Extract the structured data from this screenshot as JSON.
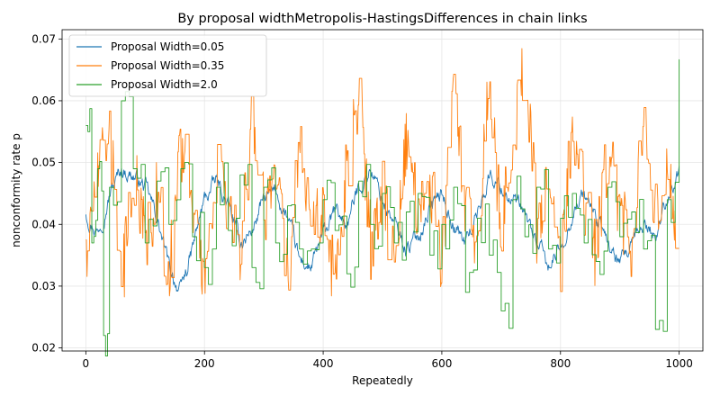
{
  "chart_data": {
    "type": "line",
    "title": "By proposal widthMetropolis-HastingsDifferences in chain links",
    "xlabel": "Repeatedly",
    "ylabel": "nonconformity rate p",
    "xlim": [
      -40,
      1040
    ],
    "ylim": [
      0.0195,
      0.0715
    ],
    "xticks": [
      0,
      200,
      400,
      600,
      800,
      1000
    ],
    "yticks": [
      0.02,
      0.03,
      0.04,
      0.05,
      0.06,
      0.07
    ],
    "grid": true,
    "legend": "top-left",
    "n_iterations": 1000,
    "series": [
      {
        "name": "Proposal Width=0.05",
        "color": "#1f77b4",
        "x": [
          0,
          20,
          40,
          60,
          80,
          100,
          120,
          140,
          160,
          180,
          200,
          220,
          240,
          260,
          280,
          300,
          320,
          340,
          360,
          380,
          400,
          420,
          440,
          460,
          480,
          500,
          520,
          540,
          560,
          580,
          600,
          620,
          640,
          660,
          680,
          700,
          720,
          740,
          760,
          780,
          800,
          820,
          840,
          860,
          880,
          900,
          920,
          940,
          960,
          980,
          1000
        ],
        "y": [
          0.042,
          0.039,
          0.045,
          0.049,
          0.048,
          0.046,
          0.041,
          0.033,
          0.029,
          0.036,
          0.044,
          0.047,
          0.043,
          0.037,
          0.039,
          0.044,
          0.045,
          0.041,
          0.034,
          0.033,
          0.038,
          0.042,
          0.04,
          0.046,
          0.049,
          0.044,
          0.04,
          0.036,
          0.038,
          0.043,
          0.045,
          0.04,
          0.037,
          0.042,
          0.048,
          0.046,
          0.044,
          0.041,
          0.037,
          0.033,
          0.036,
          0.042,
          0.045,
          0.041,
          0.037,
          0.033,
          0.036,
          0.04,
          0.038,
          0.045,
          0.048
        ]
      },
      {
        "name": "Proposal Width=0.35",
        "color": "#ff7f0e",
        "x": [
          0,
          20,
          40,
          60,
          80,
          100,
          120,
          140,
          160,
          180,
          200,
          220,
          240,
          260,
          280,
          300,
          320,
          340,
          360,
          380,
          400,
          420,
          440,
          460,
          480,
          500,
          520,
          540,
          560,
          580,
          600,
          620,
          640,
          660,
          680,
          700,
          720,
          740,
          760,
          780,
          800,
          820,
          840,
          860,
          880,
          900,
          920,
          940,
          960,
          980,
          1000
        ],
        "y": [
          0.032,
          0.047,
          0.056,
          0.029,
          0.05,
          0.038,
          0.045,
          0.031,
          0.053,
          0.044,
          0.03,
          0.048,
          0.041,
          0.035,
          0.058,
          0.042,
          0.047,
          0.033,
          0.055,
          0.038,
          0.044,
          0.03,
          0.049,
          0.06,
          0.037,
          0.046,
          0.033,
          0.054,
          0.04,
          0.048,
          0.034,
          0.061,
          0.043,
          0.036,
          0.063,
          0.04,
          0.05,
          0.069,
          0.038,
          0.047,
          0.033,
          0.056,
          0.044,
          0.035,
          0.052,
          0.041,
          0.037,
          0.057,
          0.042,
          0.051,
          0.038
        ]
      },
      {
        "name": "Proposal Width=2.0",
        "color": "#2ca02c",
        "x": [
          0,
          10,
          20,
          30,
          40,
          60,
          80,
          100,
          120,
          140,
          160,
          180,
          200,
          220,
          240,
          260,
          280,
          300,
          320,
          340,
          360,
          380,
          400,
          420,
          440,
          460,
          480,
          500,
          520,
          540,
          560,
          580,
          600,
          620,
          640,
          660,
          680,
          700,
          720,
          740,
          760,
          780,
          800,
          820,
          840,
          860,
          880,
          900,
          920,
          940,
          960,
          980,
          1000
        ],
        "y": [
          0.056,
          0.037,
          0.049,
          0.022,
          0.046,
          0.06,
          0.049,
          0.037,
          0.047,
          0.04,
          0.049,
          0.038,
          0.033,
          0.046,
          0.039,
          0.048,
          0.033,
          0.046,
          0.037,
          0.043,
          0.036,
          0.036,
          0.044,
          0.039,
          0.032,
          0.047,
          0.04,
          0.045,
          0.037,
          0.042,
          0.045,
          0.035,
          0.04,
          0.046,
          0.029,
          0.041,
          0.035,
          0.026,
          0.044,
          0.038,
          0.046,
          0.036,
          0.041,
          0.045,
          0.037,
          0.034,
          0.046,
          0.038,
          0.042,
          0.036,
          0.023,
          0.044,
          0.063
        ]
      }
    ]
  }
}
